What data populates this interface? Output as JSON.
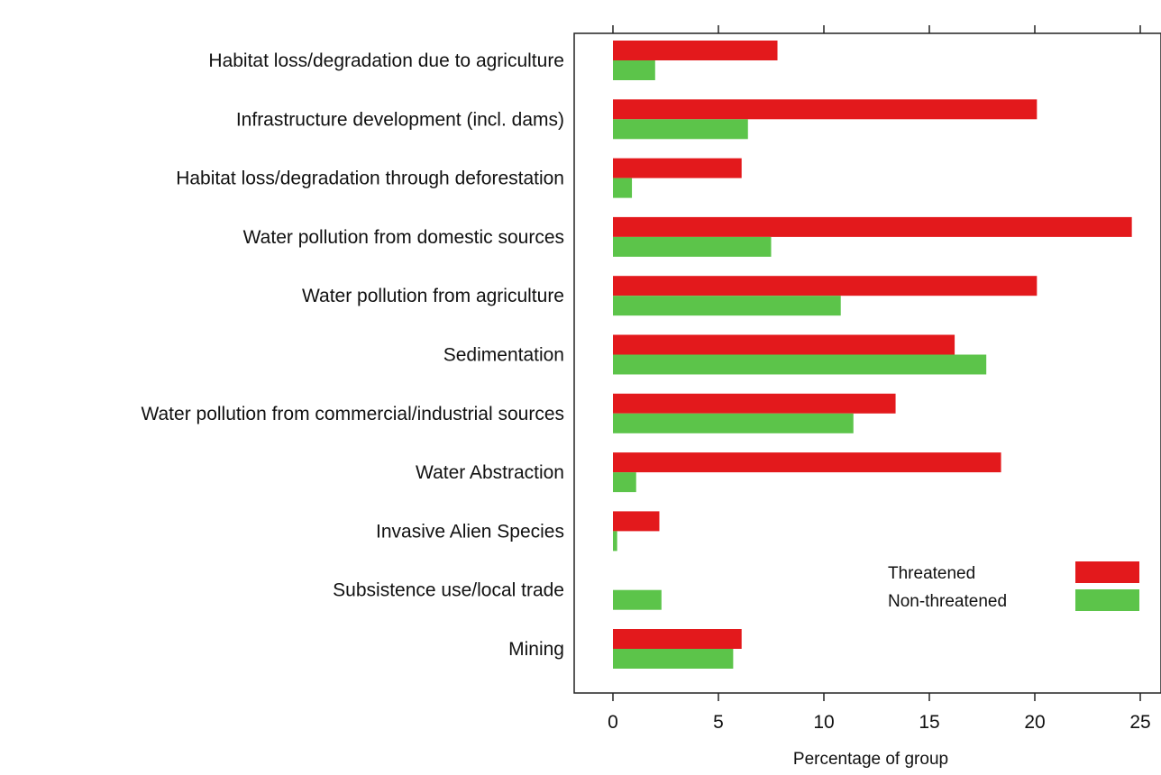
{
  "chart_data": {
    "type": "bar",
    "orientation": "horizontal",
    "categories": [
      "Habitat loss/degradation due to agriculture",
      "Infrastructure development (incl. dams)",
      "Habitat loss/degradation through deforestation",
      "Water pollution from domestic sources",
      "Water pollution from agriculture",
      "Sedimentation",
      "Water pollution from commercial/industrial sources",
      "Water Abstraction",
      "Invasive Alien Species",
      "Subsistence use/local trade",
      "Mining"
    ],
    "series": [
      {
        "name": "Threatened",
        "color": "#e3191c",
        "values": [
          7.8,
          20.1,
          6.1,
          24.6,
          20.1,
          16.2,
          13.4,
          18.4,
          2.2,
          0,
          6.1
        ]
      },
      {
        "name": "Non-threatened",
        "color": "#5cc44a",
        "values": [
          2.0,
          6.4,
          0.9,
          7.5,
          10.8,
          17.7,
          11.4,
          1.1,
          0.2,
          2.3,
          5.7
        ]
      }
    ],
    "xlabel": "Percentage of group",
    "xticks": [
      0,
      5,
      10,
      15,
      20,
      25
    ],
    "xlim": [
      -1.8,
      25.5
    ],
    "grid": false,
    "legend_position": "bottom-right"
  }
}
